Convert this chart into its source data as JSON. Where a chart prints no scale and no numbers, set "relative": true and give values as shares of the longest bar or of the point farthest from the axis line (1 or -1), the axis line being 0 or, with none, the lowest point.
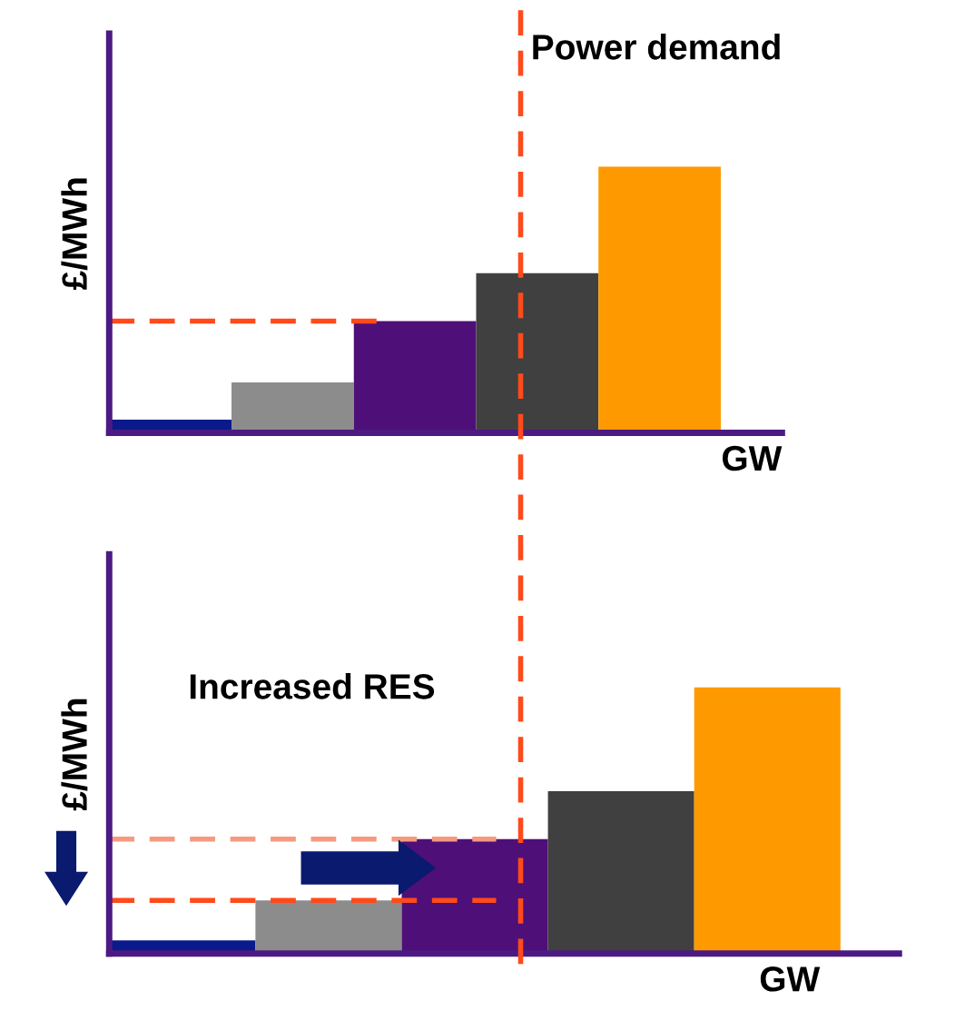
{
  "chart_data": [
    {
      "type": "bar",
      "relative": true,
      "ylabel": "£/MWh",
      "xlabel": "GW",
      "categories": [
        null,
        null,
        null,
        null,
        null
      ],
      "values": [
        0.05,
        0.19,
        0.42,
        0.6,
        1
      ],
      "colors": [
        "#0a1a8c",
        "#8c8c8c",
        "#4f0f78",
        "#404040",
        "#ff9900"
      ],
      "ref_lines": [
        {
          "axis": "y",
          "value": 0.42,
          "color": "#ff4a1a",
          "line_style": "dashed"
        }
      ],
      "annotations": [
        "Power demand"
      ],
      "grid": false
    },
    {
      "type": "bar",
      "relative": true,
      "ylabel": "£/MWh",
      "xlabel": "GW",
      "categories": [
        null,
        null,
        null,
        null,
        null
      ],
      "values": [
        0.05,
        0.2,
        0.43,
        0.61,
        1
      ],
      "colors": [
        "#0a1a8c",
        "#8c8c8c",
        "#4f0f78",
        "#404040",
        "#ff9900"
      ],
      "ref_lines": [
        {
          "axis": "y",
          "value": 0.2,
          "color": "#ff4a1a",
          "line_style": "dashed"
        },
        {
          "axis": "y",
          "value": 0.43,
          "color": "#f59a80",
          "line_style": "dashed"
        }
      ],
      "annotations": [
        "Increased RES"
      ],
      "grid": false
    }
  ]
}
